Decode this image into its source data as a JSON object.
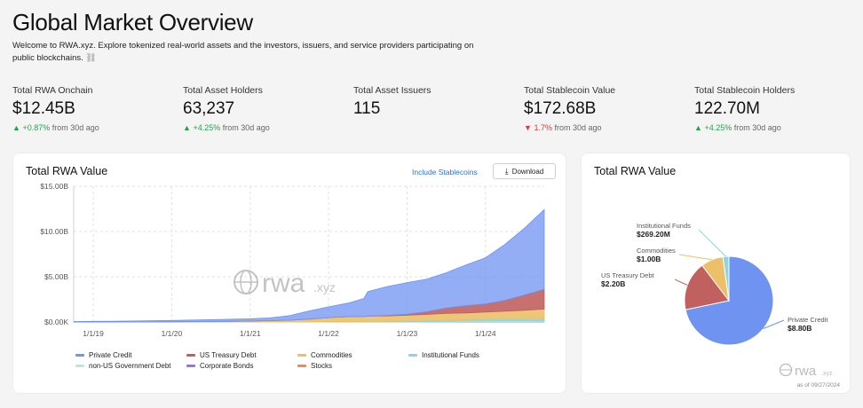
{
  "header": {
    "title": "Global Market Overview",
    "intro": "Welcome to RWA.xyz. Explore tokenized real-world assets and the investors, issuers, and service providers participating on public blockchains."
  },
  "stats": [
    {
      "label": "Total RWA Onchain",
      "value": "$12.45B",
      "direction": "up",
      "change": "+0.87%",
      "period": "from 30d ago"
    },
    {
      "label": "Total Asset Holders",
      "value": "63,237",
      "direction": "up",
      "change": "+4.25%",
      "period": "from 30d ago"
    },
    {
      "label": "Total Asset Issuers",
      "value": "115",
      "direction": "",
      "change": "",
      "period": ""
    },
    {
      "label": "Total Stablecoin Value",
      "value": "$172.68B",
      "direction": "down",
      "change": "1.7%",
      "period": "from 30d ago"
    },
    {
      "label": "Total Stablecoin Holders",
      "value": "122.70M",
      "direction": "up",
      "change": "+4.25%",
      "period": "from 30d ago"
    }
  ],
  "area_card": {
    "title": "Total RWA Value",
    "toggle_label": "Include Stablecoins",
    "download_label": "Download",
    "watermark": "rwa",
    "watermark_suffix": ".xyz"
  },
  "pie_card": {
    "title": "Total RWA Value",
    "watermark": "rwa",
    "watermark_suffix": ".xyz",
    "as_of": "as of 09/27/2024"
  },
  "colors": {
    "private_credit": "#6f93f0",
    "us_treasury": "#c0605f",
    "commodities": "#ecc068",
    "institutional": "#8cd6dc",
    "gov_debt": "#bfe4d8",
    "corporate_bonds": "#a370d8",
    "stocks": "#ef8a4f",
    "up": "#22a34a",
    "down": "#d93b3b",
    "accent": "#2f6fd6"
  },
  "chart_data": [
    {
      "type": "area",
      "stacked": true,
      "title": "Total RWA Value",
      "ylim": [
        0,
        15
      ],
      "y_ticks": [
        "$0.00K",
        "$5.00B",
        "$10.00B",
        "$15.00B"
      ],
      "x_ticks": [
        "1/1/19",
        "1/1/20",
        "1/1/21",
        "1/1/22",
        "1/1/23",
        "1/1/24"
      ],
      "x": [
        2018.75,
        2019.0,
        2019.5,
        2020.0,
        2020.5,
        2021.0,
        2021.25,
        2021.5,
        2021.75,
        2022.0,
        2022.25,
        2022.45,
        2022.5,
        2022.75,
        2023.0,
        2023.25,
        2023.5,
        2023.75,
        2024.0,
        2024.25,
        2024.5,
        2024.75
      ],
      "series": [
        {
          "name": "Stocks",
          "color": "#ef8a4f",
          "values": [
            0,
            0,
            0,
            0,
            0,
            0,
            0,
            0,
            0,
            0,
            0,
            0,
            0,
            0,
            0,
            0,
            0.01,
            0.01,
            0.01,
            0.01,
            0.01,
            0.01
          ]
        },
        {
          "name": "Corporate Bonds",
          "color": "#a370d8",
          "values": [
            0,
            0,
            0,
            0,
            0,
            0,
            0,
            0,
            0,
            0.01,
            0.01,
            0.01,
            0.01,
            0.01,
            0.02,
            0.02,
            0.02,
            0.03,
            0.03,
            0.03,
            0.03,
            0.04
          ]
        },
        {
          "name": "non-US Government Debt",
          "color": "#bfe4d8",
          "values": [
            0,
            0,
            0,
            0,
            0,
            0,
            0,
            0,
            0,
            0,
            0,
            0,
            0.01,
            0.01,
            0.02,
            0.03,
            0.04,
            0.05,
            0.06,
            0.07,
            0.08,
            0.1
          ]
        },
        {
          "name": "Institutional Funds",
          "color": "#8cd6dc",
          "values": [
            0,
            0,
            0,
            0,
            0,
            0,
            0,
            0,
            0.01,
            0.02,
            0.03,
            0.04,
            0.04,
            0.05,
            0.06,
            0.08,
            0.12,
            0.16,
            0.2,
            0.23,
            0.26,
            0.27
          ]
        },
        {
          "name": "Commodities",
          "color": "#ecc068",
          "values": [
            0,
            0,
            0.01,
            0.02,
            0.05,
            0.1,
            0.15,
            0.2,
            0.3,
            0.45,
            0.55,
            0.55,
            0.6,
            0.6,
            0.65,
            0.7,
            0.75,
            0.75,
            0.8,
            0.85,
            0.9,
            1.0
          ]
        },
        {
          "name": "US Treasury Debt",
          "color": "#c0605f",
          "values": [
            0,
            0,
            0,
            0,
            0,
            0,
            0,
            0,
            0,
            0,
            0,
            0,
            0,
            0.05,
            0.1,
            0.3,
            0.6,
            0.8,
            0.9,
            1.2,
            1.7,
            2.2
          ]
        },
        {
          "name": "Private Credit",
          "color": "#6f93f0",
          "values": [
            0.05,
            0.07,
            0.1,
            0.15,
            0.2,
            0.25,
            0.3,
            0.5,
            0.9,
            1.2,
            1.5,
            2.0,
            2.7,
            3.2,
            3.5,
            3.6,
            3.9,
            4.5,
            5.1,
            6.2,
            7.4,
            8.8
          ]
        }
      ]
    },
    {
      "type": "pie",
      "title": "Total RWA Value",
      "slices": [
        {
          "label": "Private Credit",
          "value_label": "$8.80B",
          "value": 8.8,
          "color": "#6f93f0"
        },
        {
          "label": "US Treasury Debt",
          "value_label": "$2.20B",
          "value": 2.2,
          "color": "#c0605f"
        },
        {
          "label": "Commodities",
          "value_label": "$1.00B",
          "value": 1.0,
          "color": "#ecc068"
        },
        {
          "label": "Institutional Funds",
          "value_label": "$269.20M",
          "value": 0.2692,
          "color": "#8cd6dc"
        }
      ]
    }
  ],
  "legend": [
    {
      "label": "Private Credit",
      "color": "#6f93f0"
    },
    {
      "label": "US Treasury Debt",
      "color": "#c0605f"
    },
    {
      "label": "Commodities",
      "color": "#ecc068"
    },
    {
      "label": "Institutional Funds",
      "color": "#8cd6dc"
    },
    {
      "label": "non-US Government Debt",
      "color": "#bfe4d8"
    },
    {
      "label": "Corporate Bonds",
      "color": "#a370d8"
    },
    {
      "label": "Stocks",
      "color": "#ef8a4f"
    }
  ]
}
